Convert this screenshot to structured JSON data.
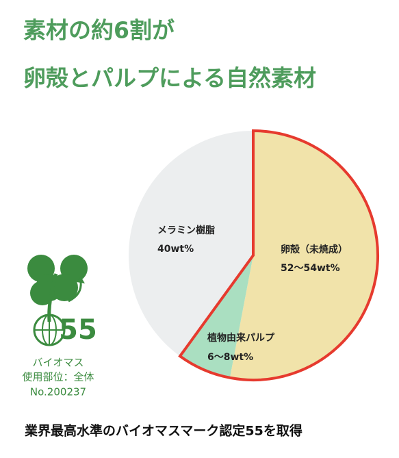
{
  "chart_data": {
    "type": "pie",
    "title_lines": [
      "素材の約6割が",
      "卵殻とパルプによる自然素材"
    ],
    "categories": [
      "卵殻（未焼成）",
      "植物由来パルプ",
      "メラミン樹脂"
    ],
    "values": [
      53,
      7,
      40
    ],
    "value_labels": [
      "52〜54wt%",
      "6〜8wt%",
      "40wt%"
    ],
    "colors": [
      "#f1e3aa",
      "#aadfc1",
      "#eceeef"
    ],
    "highlight_color": "#e63a2e"
  },
  "logo": {
    "number": "55",
    "lines": [
      "バイオマス",
      "使用部位：全体",
      "No.200237"
    ]
  },
  "footer": "業界最高水準のバイオマスマーク認定55を取得"
}
